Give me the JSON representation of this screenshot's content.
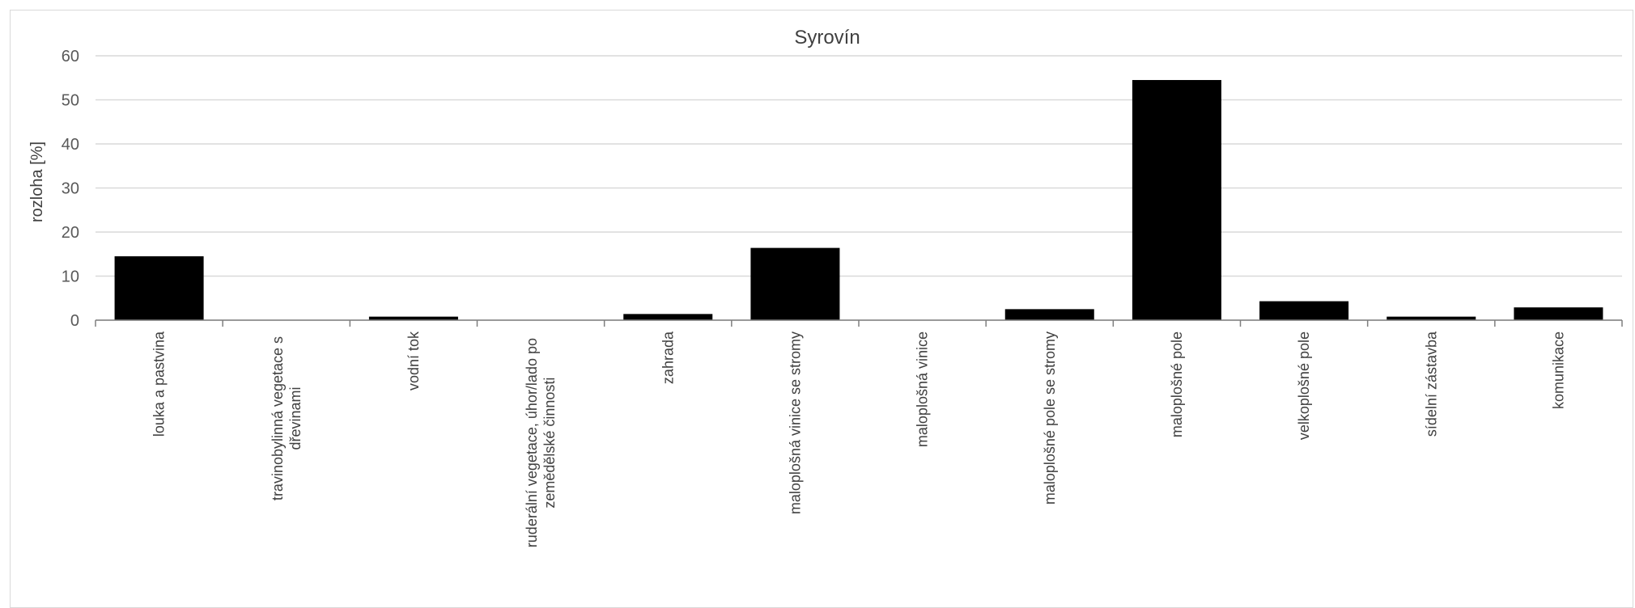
{
  "chart_data": {
    "type": "bar",
    "title": "Syrovín",
    "xlabel": "",
    "ylabel": "rozloha [%]",
    "ylim": [
      0,
      60
    ],
    "yticks": [
      0,
      10,
      20,
      30,
      40,
      50,
      60
    ],
    "grid": true,
    "bar_color": "#000000",
    "categories": [
      "louka a pastvina",
      "travinobylinná vegetace s dřevinami",
      "vodní tok",
      "ruderální vegetace, úhor/lado po zemědělské činnosti",
      "zahrada",
      "maloplošná vinice se stromy",
      "maloplošná vinice",
      "maloplošné pole se stromy",
      "maloplošné pole",
      "velkoplošné pole",
      "sídelní zástavba",
      "komunikace"
    ],
    "category_lines": [
      [
        "louka a pastvina"
      ],
      [
        "travinobylinná vegetace s",
        "dřevinami"
      ],
      [
        "vodní tok"
      ],
      [
        "ruderální vegetace, úhor/lado po",
        "zemědělské činnosti"
      ],
      [
        "zahrada"
      ],
      [
        "maloplošná vinice se stromy"
      ],
      [
        "maloplošná vinice"
      ],
      [
        "maloplošné pole se stromy"
      ],
      [
        "maloplošné pole"
      ],
      [
        "velkoplošné pole"
      ],
      [
        "sídelní zástavba"
      ],
      [
        "komunikace"
      ]
    ],
    "values": [
      14.5,
      0,
      0.8,
      0,
      1.4,
      16.4,
      0,
      2.5,
      54.5,
      4.3,
      0.8,
      2.9
    ]
  }
}
